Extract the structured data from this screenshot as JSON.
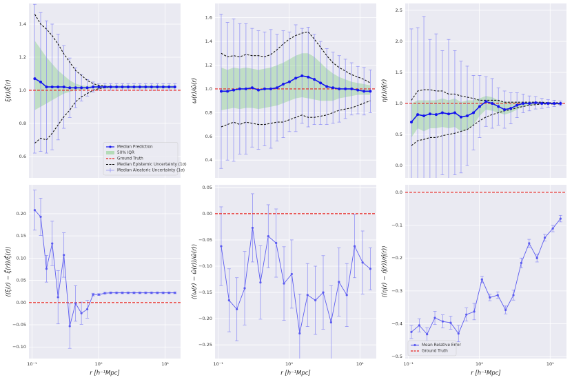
{
  "chart_data": [
    {
      "type": "line",
      "xscale": "log",
      "grid": true,
      "ylabel": "ξ(r)/ξ̂(r)",
      "x": [
        0.11,
        0.135,
        0.165,
        0.201,
        0.246,
        0.301,
        0.369,
        0.451,
        0.552,
        0.676,
        0.827,
        1.01,
        1.24,
        1.52,
        1.86,
        2.27,
        2.78,
        3.4,
        4.16,
        5.09,
        6.23,
        7.63,
        9.33,
        11.4,
        14.0
      ],
      "xlim": [
        0.09,
        17
      ],
      "xticks": [
        0.1,
        1,
        10
      ],
      "ylim": [
        0.47,
        1.525
      ],
      "yticks": [
        0.6,
        0.8,
        {
          "value": 1.0,
          "label": "1.0"
        },
        1.2,
        1.4
      ],
      "legend": "lower right",
      "median": {
        "name": "Median Prediction",
        "color": "#1515ee",
        "values": [
          1.07,
          1.05,
          1.02,
          1.02,
          1.02,
          1.02,
          1.015,
          1.015,
          1.015,
          1.015,
          1.02,
          1.02,
          1.02,
          1.02,
          1.02,
          1.02,
          1.02,
          1.02,
          1.02,
          1.02,
          1.02,
          1.02,
          1.02,
          1.02,
          1.02
        ],
        "errors_name": "Median Aleatoric Uncertainty (1σ)",
        "errors": [
          0.45,
          0.42,
          0.4,
          0.38,
          0.32,
          0.25,
          0.18,
          0.12,
          0.08,
          0.05,
          0.03,
          0.02,
          0.02,
          0.02,
          0.02,
          0.02,
          0.02,
          0.02,
          0.02,
          0.02,
          0.02,
          0.02,
          0.02,
          0.02,
          0.02
        ]
      },
      "iqr": {
        "name": "50% IQR",
        "color": "#8fd18f",
        "upper": [
          1.3,
          1.25,
          1.2,
          1.16,
          1.12,
          1.09,
          1.06,
          1.04,
          1.03,
          1.025,
          1.03,
          1.03,
          1.03,
          1.03,
          1.03,
          1.03,
          1.03,
          1.03,
          1.03,
          1.03,
          1.03,
          1.03,
          1.03,
          1.03,
          1.03
        ],
        "lower": [
          0.88,
          0.9,
          0.92,
          0.94,
          0.96,
          0.98,
          0.99,
          1.0,
          1.0,
          1.005,
          1.01,
          1.01,
          1.01,
          1.01,
          1.01,
          1.01,
          1.01,
          1.01,
          1.01,
          1.01,
          1.01,
          1.01,
          1.01,
          1.01,
          1.01
        ]
      },
      "reference": {
        "name": "Ground Truth",
        "value": 1,
        "color": "#e8211d"
      },
      "epistemic": {
        "name": "Median Epistemic Uncertainty (1σ)",
        "color": "#111",
        "upper": [
          1.46,
          1.4,
          1.37,
          1.33,
          1.28,
          1.22,
          1.17,
          1.12,
          1.09,
          1.06,
          1.04,
          1.03,
          1.025,
          1.02,
          1.02,
          1.02,
          1.02,
          1.02,
          1.02,
          1.02,
          1.02,
          1.02,
          1.02,
          1.02,
          1.02
        ],
        "lower": [
          0.68,
          0.71,
          0.7,
          0.74,
          0.79,
          0.84,
          0.88,
          0.93,
          0.96,
          0.98,
          1.0,
          1.01,
          1.015,
          1.02,
          1.02,
          1.02,
          1.02,
          1.02,
          1.02,
          1.02,
          1.02,
          1.02,
          1.02,
          1.02,
          1.02
        ]
      }
    },
    {
      "type": "line",
      "xscale": "log",
      "grid": true,
      "ylabel": "ω(r)/ω̂(r)",
      "x": [
        0.11,
        0.135,
        0.165,
        0.201,
        0.246,
        0.301,
        0.369,
        0.451,
        0.552,
        0.676,
        0.827,
        1.01,
        1.24,
        1.52,
        1.86,
        2.27,
        2.78,
        3.4,
        4.16,
        5.09,
        6.23,
        7.63,
        9.33,
        11.4,
        14.0
      ],
      "xlim": [
        0.09,
        17
      ],
      "xticks": [
        0.1,
        1,
        10
      ],
      "ylim": [
        0.25,
        1.72
      ],
      "yticks": [
        0.4,
        0.6,
        0.8,
        {
          "value": 1.0,
          "label": "1.0"
        },
        1.2,
        1.4,
        1.6
      ],
      "median": {
        "color": "#1515ee",
        "values": [
          0.98,
          0.98,
          0.99,
          1.0,
          1.0,
          1.01,
          0.99,
          1.0,
          1.0,
          1.01,
          1.04,
          1.06,
          1.09,
          1.11,
          1.1,
          1.08,
          1.05,
          1.02,
          1.01,
          1.0,
          1.0,
          1.0,
          0.99,
          0.98,
          0.98
        ],
        "errors": [
          0.65,
          0.58,
          0.6,
          0.55,
          0.55,
          0.5,
          0.5,
          0.48,
          0.5,
          0.45,
          0.45,
          0.42,
          0.45,
          0.4,
          0.42,
          0.38,
          0.35,
          0.32,
          0.3,
          0.28,
          0.25,
          0.22,
          0.2,
          0.2,
          0.18
        ]
      },
      "iqr": {
        "color": "#8fd18f",
        "upper": [
          1.18,
          1.16,
          1.18,
          1.17,
          1.18,
          1.17,
          1.16,
          1.17,
          1.18,
          1.2,
          1.22,
          1.25,
          1.28,
          1.3,
          1.3,
          1.27,
          1.22,
          1.17,
          1.13,
          1.1,
          1.08,
          1.06,
          1.05,
          1.04,
          1.03
        ],
        "lower": [
          0.82,
          0.83,
          0.84,
          0.83,
          0.84,
          0.84,
          0.83,
          0.84,
          0.85,
          0.86,
          0.88,
          0.9,
          0.92,
          0.93,
          0.92,
          0.91,
          0.9,
          0.9,
          0.9,
          0.92,
          0.93,
          0.94,
          0.95,
          0.95,
          0.95
        ]
      },
      "reference": {
        "value": 1,
        "color": "#e8211d"
      },
      "epistemic": {
        "color": "#111",
        "upper": [
          1.3,
          1.27,
          1.28,
          1.27,
          1.29,
          1.28,
          1.28,
          1.27,
          1.29,
          1.33,
          1.38,
          1.42,
          1.45,
          1.47,
          1.48,
          1.42,
          1.35,
          1.28,
          1.22,
          1.18,
          1.15,
          1.12,
          1.1,
          1.08,
          1.05
        ],
        "lower": [
          0.68,
          0.7,
          0.72,
          0.7,
          0.72,
          0.71,
          0.7,
          0.7,
          0.71,
          0.72,
          0.72,
          0.74,
          0.76,
          0.78,
          0.76,
          0.76,
          0.77,
          0.78,
          0.8,
          0.82,
          0.83,
          0.84,
          0.86,
          0.88,
          0.9
        ]
      }
    },
    {
      "type": "line",
      "xscale": "log",
      "grid": true,
      "ylabel": "η(r)/η̂(r)",
      "x": [
        0.11,
        0.135,
        0.165,
        0.201,
        0.246,
        0.301,
        0.369,
        0.451,
        0.552,
        0.676,
        0.827,
        1.01,
        1.24,
        1.52,
        1.86,
        2.27,
        2.78,
        3.4,
        4.16,
        5.09,
        6.23,
        7.63,
        9.33,
        11.4,
        14.0
      ],
      "xlim": [
        0.09,
        17
      ],
      "xticks": [
        0.1,
        1,
        10
      ],
      "ylim": [
        -0.2,
        2.61
      ],
      "yticks": [
        {
          "value": 0,
          "label": "0.0"
        },
        0.5,
        {
          "value": 1,
          "label": "1.0"
        },
        1.5,
        {
          "value": 2,
          "label": "2.0"
        },
        2.5
      ],
      "median": {
        "color": "#1515ee",
        "values": [
          0.7,
          0.82,
          0.8,
          0.83,
          0.82,
          0.85,
          0.83,
          0.85,
          0.78,
          0.8,
          0.85,
          0.95,
          1.03,
          1.0,
          0.95,
          0.9,
          0.92,
          0.97,
          1.0,
          1.0,
          1.01,
          1.0,
          1.0,
          1.0,
          1.0
        ],
        "errors": [
          1.5,
          1.4,
          1.6,
          1.2,
          1.3,
          1.0,
          1.2,
          1.0,
          0.9,
          0.8,
          0.6,
          0.5,
          0.4,
          0.4,
          0.3,
          0.3,
          0.25,
          0.2,
          0.15,
          0.12,
          0.1,
          0.08,
          0.06,
          0.05,
          0.04
        ]
      },
      "iqr": {
        "color": "#8fd18f",
        "upper": [
          1.0,
          1.05,
          1.05,
          1.05,
          1.05,
          1.08,
          1.05,
          1.08,
          1.02,
          1.05,
          1.05,
          1.08,
          1.12,
          1.1,
          1.05,
          1.02,
          1.02,
          1.02,
          1.02,
          1.02,
          1.02,
          1.02,
          1.01,
          1.01,
          1.01
        ],
        "lower": [
          0.45,
          0.6,
          0.55,
          0.6,
          0.6,
          0.62,
          0.6,
          0.62,
          0.55,
          0.58,
          0.65,
          0.8,
          0.9,
          0.88,
          0.85,
          0.82,
          0.85,
          0.9,
          0.95,
          0.97,
          0.98,
          0.99,
          0.99,
          0.99,
          0.99
        ]
      },
      "reference": {
        "value": 1,
        "color": "#e8211d"
      },
      "epistemic": {
        "color": "#111",
        "upper": [
          1.05,
          1.2,
          1.22,
          1.22,
          1.2,
          1.2,
          1.15,
          1.15,
          1.12,
          1.1,
          1.08,
          1.05,
          1.05,
          1.05,
          1.05,
          1.02,
          1.02,
          1.02,
          1.02,
          1.02,
          1.02,
          1.02,
          1.01,
          1.01,
          1.01
        ],
        "lower": [
          0.32,
          0.4,
          0.42,
          0.45,
          0.45,
          0.48,
          0.5,
          0.52,
          0.55,
          0.58,
          0.65,
          0.72,
          0.78,
          0.82,
          0.85,
          0.88,
          0.9,
          0.93,
          0.95,
          0.97,
          0.98,
          0.99,
          0.99,
          0.99,
          0.99
        ]
      }
    },
    {
      "type": "line",
      "xscale": "log",
      "grid": true,
      "ylabel": "⟨(ξ(r) − ξ̂(r))/ξ̂(r)⟩",
      "xlabel": "r [h⁻¹Mpc]",
      "x": [
        0.11,
        0.135,
        0.165,
        0.201,
        0.246,
        0.301,
        0.369,
        0.451,
        0.552,
        0.676,
        0.827,
        1.01,
        1.24,
        1.52,
        1.86,
        2.27,
        2.78,
        3.4,
        4.16,
        5.09,
        6.23,
        7.63,
        9.33,
        11.4,
        14.0
      ],
      "xlim": [
        0.09,
        17
      ],
      "xticks": [
        {
          "value": 0.1,
          "label": "10⁻¹"
        },
        {
          "value": 1,
          "label": "10⁰"
        },
        {
          "value": 10,
          "label": "10¹"
        }
      ],
      "ylim": [
        -0.126,
        0.265
      ],
      "yticks": [
        {
          "value": -0.1,
          "label": "−0.10"
        },
        {
          "value": -0.05,
          "label": "−0.05"
        },
        {
          "value": 0,
          "label": "0.00"
        },
        {
          "value": 0.05,
          "label": "0.05"
        },
        {
          "value": 0.1,
          "label": "0.10"
        },
        {
          "value": 0.15,
          "label": "0.15"
        },
        {
          "value": 0.2,
          "label": "0.20"
        }
      ],
      "median": {
        "color": "#5b5bf0",
        "values": [
          0.208,
          0.193,
          0.076,
          0.133,
          0.012,
          0.107,
          -0.053,
          -0.002,
          -0.024,
          -0.015,
          0.018,
          0.018,
          0.021,
          0.022,
          0.022,
          0.022,
          0.022,
          0.022,
          0.022,
          0.022,
          0.022,
          0.022,
          0.022,
          0.022,
          0.022
        ],
        "errors": [
          0.045,
          0.042,
          0.03,
          0.05,
          0.06,
          0.05,
          0.05,
          0.04,
          0.025,
          0.02,
          0.003,
          0.002,
          0.002,
          0.002,
          0.002,
          0.002,
          0.002,
          0.002,
          0.002,
          0.002,
          0.002,
          0.002,
          0.002,
          0.002,
          0.002
        ]
      },
      "reference": {
        "value": 0,
        "color": "#e8211d"
      }
    },
    {
      "type": "line",
      "xscale": "log",
      "grid": true,
      "ylabel": "⟨(ω(r) − ω̂(r))/ω̂(r)⟩",
      "xlabel": "r [h⁻¹Mpc]",
      "x": [
        0.11,
        0.142,
        0.183,
        0.236,
        0.305,
        0.394,
        0.508,
        0.656,
        0.846,
        1.09,
        1.41,
        1.82,
        2.35,
        3.03,
        3.91,
        5.05,
        6.52,
        8.41,
        10.9,
        14.0
      ],
      "xlim": [
        0.09,
        17
      ],
      "xticks": [
        {
          "value": 0.1,
          "label": "10⁻¹"
        },
        {
          "value": 1,
          "label": "10⁰"
        },
        {
          "value": 10,
          "label": "10¹"
        }
      ],
      "ylim": [
        -0.276,
        0.055
      ],
      "yticks": [
        {
          "value": -0.25,
          "label": "−0.25"
        },
        {
          "value": -0.2,
          "label": "−0.20"
        },
        {
          "value": -0.15,
          "label": "−0.15"
        },
        {
          "value": -0.1,
          "label": "−0.10"
        },
        {
          "value": -0.05,
          "label": "−0.05"
        },
        {
          "value": 0,
          "label": "0.00"
        },
        0.05
      ],
      "median": {
        "color": "#5b5bf0",
        "values": [
          -0.062,
          -0.165,
          -0.182,
          -0.142,
          -0.027,
          -0.131,
          -0.043,
          -0.056,
          -0.133,
          -0.115,
          -0.228,
          -0.155,
          -0.165,
          -0.15,
          -0.207,
          -0.13,
          -0.155,
          -0.062,
          -0.093,
          -0.105
        ],
        "errors": [
          0.075,
          0.06,
          0.06,
          0.07,
          0.065,
          0.07,
          0.06,
          0.065,
          0.07,
          0.065,
          0.075,
          0.06,
          0.065,
          0.07,
          0.07,
          0.065,
          0.06,
          0.06,
          0.06,
          0.04
        ]
      },
      "reference": {
        "value": 0,
        "color": "#e8211d"
      }
    },
    {
      "type": "line",
      "xscale": "log",
      "grid": true,
      "ylabel": "⟨(η(r) − η̂(r))/η̂(r)⟩",
      "xlabel": "r [h⁻¹Mpc]",
      "x": [
        0.11,
        0.142,
        0.183,
        0.236,
        0.305,
        0.394,
        0.508,
        0.656,
        0.846,
        1.09,
        1.41,
        1.82,
        2.35,
        3.03,
        3.91,
        5.05,
        6.52,
        8.41,
        10.9,
        14.0
      ],
      "xlim": [
        0.09,
        17
      ],
      "xticks": [
        {
          "value": 0.1,
          "label": "10⁻¹"
        },
        {
          "value": 1,
          "label": "10⁰"
        },
        {
          "value": 10,
          "label": "10¹"
        }
      ],
      "ylim": [
        -0.506,
        0.023
      ],
      "yticks": [
        {
          "value": -0.5,
          "label": "−0.5"
        },
        {
          "value": -0.4,
          "label": "−0.4"
        },
        {
          "value": -0.3,
          "label": "−0.3"
        },
        {
          "value": -0.2,
          "label": "−0.2"
        },
        {
          "value": -0.1,
          "label": "−0.1"
        },
        {
          "value": 0,
          "label": "0.0"
        }
      ],
      "legend": "lower left",
      "median": {
        "name": "Mean Relative Error",
        "color": "#5b5bf0",
        "values": [
          -0.425,
          -0.405,
          -0.432,
          -0.382,
          -0.393,
          -0.397,
          -0.43,
          -0.372,
          -0.363,
          -0.265,
          -0.32,
          -0.313,
          -0.358,
          -0.313,
          -0.215,
          -0.155,
          -0.2,
          -0.138,
          -0.11,
          -0.08
        ],
        "errors": [
          0.02,
          0.02,
          0.02,
          0.02,
          0.02,
          0.02,
          0.025,
          0.02,
          0.025,
          0.01,
          0.01,
          0.01,
          0.012,
          0.015,
          0.015,
          0.012,
          0.012,
          0.01,
          0.01,
          0.01
        ]
      },
      "reference": {
        "name": "Ground Truth",
        "value": 0,
        "color": "#e8211d"
      }
    }
  ]
}
